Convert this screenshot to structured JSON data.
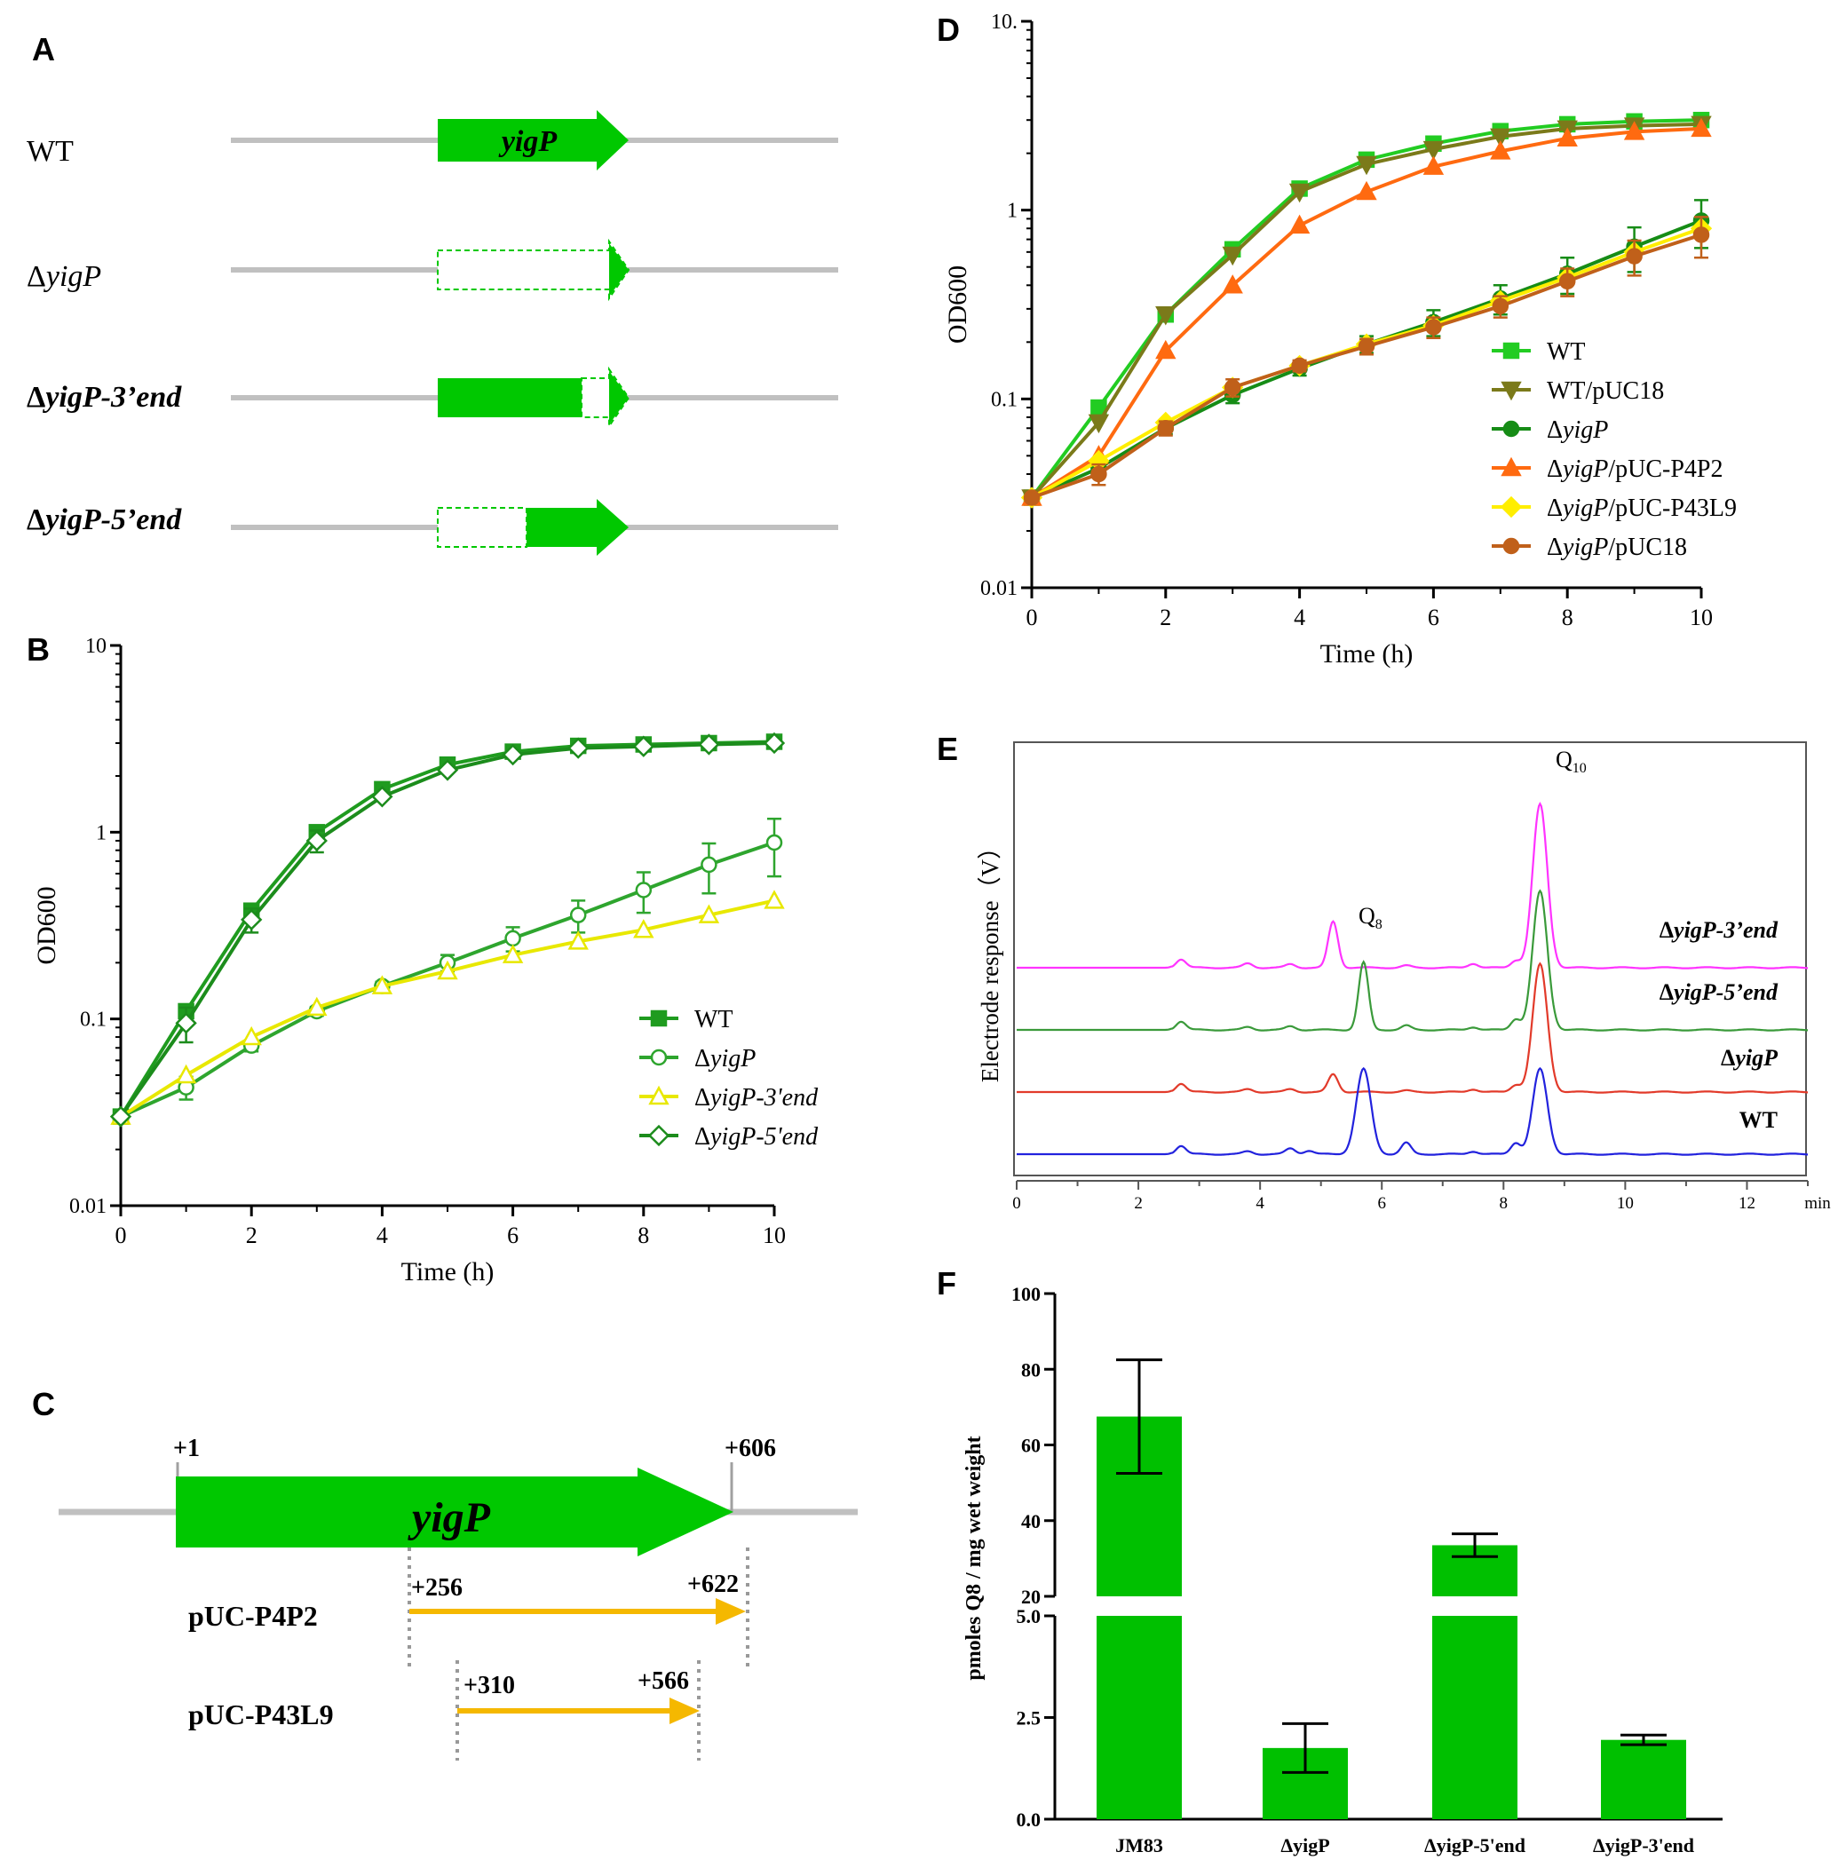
{
  "colors": {
    "gene_green": "#00c800",
    "backbone_gray": "#c0c0c0",
    "fragment_orange": "#f5b800",
    "dark_green": "#2e8b2e",
    "b_wt": "#1f9b1f",
    "b_dyigp": "#2ea52e",
    "b_3end": "#e8e800",
    "b_5end": "#1c8c1c",
    "d_wt": "#22cc22",
    "d_wt_puc18": "#7b7a1a",
    "d_dyigp": "#168c16",
    "d_p4p2": "#ff6a10",
    "d_p43l9": "#ffee00",
    "d_puc18": "#c0601a",
    "e_3end": "#ff33ff",
    "e_5end": "#3a9a3a",
    "e_dyigp": "#e23a2a",
    "e_wt": "#2222dd",
    "bar_green": "#00c000"
  },
  "panelA": {
    "label": "A",
    "rows": [
      {
        "name": "WT",
        "italic_suffix": "",
        "gene_label": "yigP"
      },
      {
        "name": "Δ",
        "italic_suffix": "yigP",
        "gene_label": ""
      },
      {
        "name": "Δ",
        "italic_suffix": "yigP-3’end",
        "gene_label": ""
      },
      {
        "name": "Δ",
        "italic_suffix": "yigP-5’end",
        "gene_label": ""
      }
    ]
  },
  "panelC": {
    "label": "C",
    "gene_label": "yigP",
    "start": "+1",
    "end": "+606",
    "fragments": [
      {
        "name": "pUC-P4P2",
        "start": "+256",
        "end": "+622"
      },
      {
        "name": "pUC-P43L9",
        "start": "+310",
        "end": "+566"
      }
    ]
  },
  "chart_data": [
    {
      "panel": "B",
      "type": "line",
      "xlabel": "Time (h)",
      "ylabel": "OD600",
      "yscale": "log",
      "xlim": [
        0,
        10
      ],
      "ylim": [
        0.01,
        10
      ],
      "xticks": [
        "0",
        "2",
        "4",
        "6",
        "8",
        "10"
      ],
      "yticks": [
        "0.01",
        "0.1",
        "1",
        "10"
      ],
      "legend": "right",
      "x": [
        0,
        1,
        2,
        3,
        4,
        5,
        6,
        7,
        8,
        9,
        10
      ],
      "series": [
        {
          "name": "WT",
          "prefix": "",
          "italic": "",
          "marker": "filled-square",
          "color": "#1f9b1f",
          "values": [
            0.03,
            0.11,
            0.38,
            1.0,
            1.7,
            2.3,
            2.7,
            2.9,
            2.95,
            3.0,
            3.05
          ],
          "err": []
        },
        {
          "name": "ΔyigP",
          "prefix": "Δ",
          "italic": "yigP",
          "marker": "open-circle",
          "color": "#2ea52e",
          "values": [
            0.03,
            0.043,
            0.072,
            0.11,
            0.15,
            0.2,
            0.27,
            0.36,
            0.49,
            0.67,
            0.88
          ],
          "err": [
            0,
            0.006,
            0.005,
            0.006,
            0.008,
            0.02,
            0.04,
            0.07,
            0.12,
            0.2,
            0.3
          ]
        },
        {
          "name": "ΔyigP-3'end",
          "prefix": "Δ",
          "italic": "yigP-3'end",
          "marker": "open-triangle",
          "color": "#e8e800",
          "values": [
            0.03,
            0.05,
            0.08,
            0.115,
            0.15,
            0.18,
            0.22,
            0.26,
            0.3,
            0.36,
            0.43
          ],
          "err": []
        },
        {
          "name": "ΔyigP-5'end",
          "prefix": "Δ",
          "italic": "yigP-5'end",
          "marker": "open-diamond",
          "color": "#1c8c1c",
          "values": [
            0.03,
            0.095,
            0.34,
            0.9,
            1.55,
            2.15,
            2.6,
            2.82,
            2.88,
            2.95,
            3.0
          ],
          "err": [
            0,
            0.02,
            0.05,
            0.12,
            0,
            0,
            0,
            0,
            0,
            0,
            0
          ]
        }
      ]
    },
    {
      "panel": "D",
      "type": "line",
      "xlabel": "Time (h)",
      "ylabel": "OD600",
      "yscale": "log",
      "xlim": [
        0,
        10
      ],
      "ylim": [
        0.01,
        10
      ],
      "xticks": [
        "0",
        "2",
        "4",
        "6",
        "8",
        "10"
      ],
      "yticks": [
        "0.01",
        "0.1",
        "1",
        "10."
      ],
      "legend": "right",
      "x": [
        0,
        1,
        2,
        3,
        4,
        5,
        6,
        7,
        8,
        9,
        10
      ],
      "series": [
        {
          "name": "WT",
          "prefix": "",
          "italic": "",
          "rest": "WT",
          "marker": "filled-square",
          "color": "#22cc22",
          "values": [
            0.03,
            0.09,
            0.28,
            0.62,
            1.3,
            1.85,
            2.25,
            2.62,
            2.85,
            2.95,
            3.0
          ],
          "err": []
        },
        {
          "name": "WT/pUC18",
          "prefix": "",
          "italic": "",
          "rest": "WT/pUC18",
          "marker": "filled-down-triangle",
          "color": "#7b7a1a",
          "values": [
            0.03,
            0.075,
            0.28,
            0.58,
            1.25,
            1.75,
            2.1,
            2.45,
            2.7,
            2.8,
            2.85
          ],
          "err": []
        },
        {
          "name": "ΔyigP",
          "prefix": "Δ",
          "italic": "yigP",
          "rest": "",
          "marker": "filled-circle",
          "color": "#168c16",
          "values": [
            0.03,
            0.043,
            0.07,
            0.105,
            0.145,
            0.195,
            0.255,
            0.34,
            0.46,
            0.64,
            0.88
          ],
          "err": [
            0,
            0.004,
            0.005,
            0.01,
            0.012,
            0.02,
            0.04,
            0.06,
            0.1,
            0.17,
            0.25
          ]
        },
        {
          "name": "ΔyigP/pUC-P4P2",
          "prefix": "Δ",
          "italic": "yigP",
          "rest": "/pUC-P4P2",
          "marker": "filled-up-triangle",
          "color": "#ff6a10",
          "values": [
            0.03,
            0.05,
            0.18,
            0.4,
            0.83,
            1.25,
            1.7,
            2.05,
            2.4,
            2.6,
            2.7
          ],
          "err": []
        },
        {
          "name": "ΔyigP/pUC-P43L9",
          "prefix": "Δ",
          "italic": "yigP",
          "rest": "/pUC-P43L9",
          "marker": "filled-diamond",
          "color": "#ffee00",
          "values": [
            0.03,
            0.047,
            0.075,
            0.115,
            0.15,
            0.195,
            0.245,
            0.33,
            0.44,
            0.6,
            0.8
          ],
          "err": []
        },
        {
          "name": "ΔyigP/pUC18",
          "prefix": "Δ",
          "italic": "yigP",
          "rest": "/pUC18",
          "marker": "filled-circle",
          "color": "#c0601a",
          "values": [
            0.03,
            0.04,
            0.07,
            0.115,
            0.15,
            0.19,
            0.24,
            0.31,
            0.42,
            0.57,
            0.74
          ],
          "err": [
            0,
            0.005,
            0.006,
            0.012,
            0.01,
            0.018,
            0.03,
            0.04,
            0.07,
            0.12,
            0.18
          ]
        }
      ]
    },
    {
      "panel": "E",
      "type": "line",
      "xlabel": "min",
      "ylabel": "Electrode response（V）",
      "xlim": [
        0,
        13
      ],
      "xticks": [
        "0",
        "2",
        "4",
        "6",
        "8",
        "10",
        "12"
      ],
      "peak_labels": [
        {
          "text": "Q",
          "sub": "8"
        },
        {
          "text": "Q",
          "sub": "10"
        }
      ],
      "series": [
        {
          "name": "ΔyigP-3’end",
          "prefix": "Δ",
          "italic": "yigP-3’end",
          "color": "#ff33ff",
          "peaks": [
            [
              2.7,
              0.12
            ],
            [
              3.8,
              0.06
            ],
            [
              4.5,
              0.05
            ],
            [
              5.2,
              0.65
            ],
            [
              6.4,
              0.03
            ],
            [
              7.5,
              0.06
            ],
            [
              8.2,
              0.1
            ],
            [
              8.6,
              2.3
            ]
          ]
        },
        {
          "name": "ΔyigP-5’end",
          "prefix": "Δ",
          "italic": "yigP-5’end",
          "color": "#3a9a3a",
          "peaks": [
            [
              2.7,
              0.12
            ],
            [
              3.8,
              0.04
            ],
            [
              4.5,
              0.05
            ],
            [
              5.7,
              0.95
            ],
            [
              6.4,
              0.06
            ],
            [
              7.5,
              0.04
            ],
            [
              8.2,
              0.15
            ],
            [
              8.6,
              1.95
            ]
          ]
        },
        {
          "name": "ΔyigP",
          "prefix": "Δ",
          "italic": "yigP",
          "color": "#e23a2a",
          "peaks": [
            [
              2.7,
              0.12
            ],
            [
              3.8,
              0.04
            ],
            [
              4.5,
              0.04
            ],
            [
              5.2,
              0.25
            ],
            [
              6.4,
              0.02
            ],
            [
              7.5,
              0.04
            ],
            [
              8.2,
              0.1
            ],
            [
              8.6,
              1.8
            ]
          ]
        },
        {
          "name": "WT",
          "prefix": "",
          "italic": "",
          "color": "#2222dd",
          "peaks": [
            [
              2.7,
              0.12
            ],
            [
              3.8,
              0.04
            ],
            [
              4.5,
              0.08
            ],
            [
              4.8,
              0.05
            ],
            [
              5.7,
              1.2
            ],
            [
              6.4,
              0.16
            ],
            [
              7.5,
              0.04
            ],
            [
              8.2,
              0.16
            ],
            [
              8.6,
              1.2
            ]
          ]
        }
      ]
    },
    {
      "panel": "F",
      "type": "bar",
      "ylabel": "pmoles Q8 / mg wet weight",
      "broken_axis": true,
      "ylim_lower": [
        0,
        5
      ],
      "ylim_upper": [
        20,
        100
      ],
      "yticks_lower": [
        "0.0",
        "2.5",
        "5.0"
      ],
      "yticks_upper": [
        "20",
        "40",
        "60",
        "80",
        "100"
      ],
      "categories": [
        "JM83",
        "ΔyigP",
        "ΔyigP-5'end",
        "ΔyigP-3'end"
      ],
      "values": [
        67.5,
        1.75,
        33.5,
        1.95
      ],
      "errors": [
        15.0,
        0.6,
        3.0,
        0.12
      ]
    }
  ]
}
